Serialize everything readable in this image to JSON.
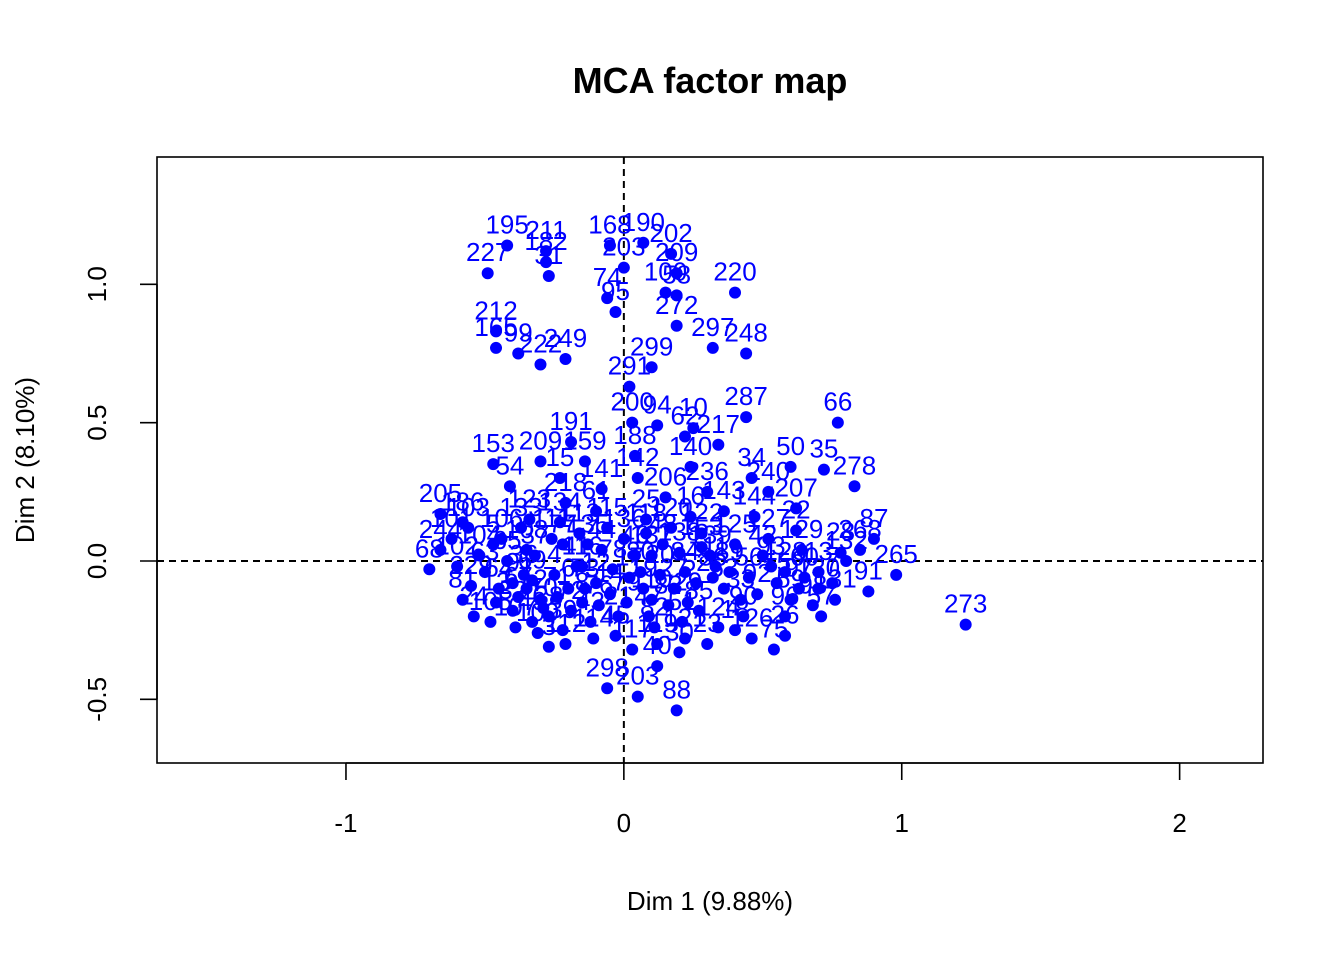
{
  "colors": {
    "points": "#0000ff",
    "axes": "#000000",
    "background": "#ffffff"
  },
  "chart_data": {
    "type": "scatter",
    "title": "MCA factor map",
    "xlabel": "Dim 1 (9.88%)",
    "ylabel": "Dim 2 (8.10%)",
    "xlim": [
      -1.68,
      2.3
    ],
    "ylim": [
      -0.73,
      1.46
    ],
    "xticks": [
      -1,
      0,
      1,
      2
    ],
    "xtick_labels": [
      "-1",
      "0",
      "1",
      "2"
    ],
    "yticks": [
      -0.5,
      0.0,
      0.5,
      1.0
    ],
    "ytick_labels": [
      "-0.5",
      "0.0",
      "0.5",
      "1.0"
    ],
    "reference_lines": {
      "x": 0,
      "y": 0,
      "style": "dashed"
    },
    "points": [
      {
        "label": "195",
        "x": -0.42,
        "y": 1.14
      },
      {
        "label": "211",
        "x": -0.28,
        "y": 1.12
      },
      {
        "label": "182",
        "x": -0.28,
        "y": 1.08
      },
      {
        "label": "31",
        "x": -0.27,
        "y": 1.03
      },
      {
        "label": "227",
        "x": -0.49,
        "y": 1.04
      },
      {
        "label": "168",
        "x": -0.05,
        "y": 1.14
      },
      {
        "label": "190",
        "x": 0.07,
        "y": 1.15
      },
      {
        "label": "202",
        "x": 0.17,
        "y": 1.11
      },
      {
        "label": "203",
        "x": 0.0,
        "y": 1.06
      },
      {
        "label": "209",
        "x": 0.19,
        "y": 1.04
      },
      {
        "label": "100",
        "x": 0.15,
        "y": 0.97
      },
      {
        "label": "220",
        "x": 0.4,
        "y": 0.97
      },
      {
        "label": "74",
        "x": -0.06,
        "y": 0.95
      },
      {
        "label": "95",
        "x": -0.03,
        "y": 0.9
      },
      {
        "label": "58",
        "x": 0.19,
        "y": 0.96
      },
      {
        "label": "212",
        "x": -0.46,
        "y": 0.83
      },
      {
        "label": "165",
        "x": -0.46,
        "y": 0.77
      },
      {
        "label": "99",
        "x": -0.38,
        "y": 0.75
      },
      {
        "label": "222",
        "x": -0.3,
        "y": 0.71
      },
      {
        "label": "249",
        "x": -0.21,
        "y": 0.73
      },
      {
        "label": "297",
        "x": 0.32,
        "y": 0.77
      },
      {
        "label": "248",
        "x": 0.44,
        "y": 0.75
      },
      {
        "label": "272",
        "x": 0.19,
        "y": 0.85
      },
      {
        "label": "299",
        "x": 0.1,
        "y": 0.7
      },
      {
        "label": "291",
        "x": 0.02,
        "y": 0.63
      },
      {
        "label": "66",
        "x": 0.77,
        "y": 0.5
      },
      {
        "label": "287",
        "x": 0.44,
        "y": 0.52
      },
      {
        "label": "191",
        "x": -0.19,
        "y": 0.43
      },
      {
        "label": "200",
        "x": 0.03,
        "y": 0.5
      },
      {
        "label": "94",
        "x": 0.12,
        "y": 0.49
      },
      {
        "label": "10",
        "x": 0.25,
        "y": 0.48
      },
      {
        "label": "62",
        "x": 0.22,
        "y": 0.45
      },
      {
        "label": "217",
        "x": 0.34,
        "y": 0.42
      },
      {
        "label": "153",
        "x": -0.47,
        "y": 0.35
      },
      {
        "label": "209",
        "x": -0.3,
        "y": 0.36
      },
      {
        "label": "159",
        "x": -0.14,
        "y": 0.36
      },
      {
        "label": "188",
        "x": 0.04,
        "y": 0.38
      },
      {
        "label": "50",
        "x": 0.6,
        "y": 0.34
      },
      {
        "label": "35",
        "x": 0.72,
        "y": 0.33
      },
      {
        "label": "278",
        "x": 0.83,
        "y": 0.27
      },
      {
        "label": "34",
        "x": 0.46,
        "y": 0.3
      },
      {
        "label": "240",
        "x": 0.52,
        "y": 0.25
      },
      {
        "label": "54",
        "x": -0.41,
        "y": 0.27
      },
      {
        "label": "15",
        "x": -0.23,
        "y": 0.3
      },
      {
        "label": "218",
        "x": -0.21,
        "y": 0.21
      },
      {
        "label": "206",
        "x": 0.15,
        "y": 0.23
      },
      {
        "label": "236",
        "x": 0.3,
        "y": 0.25
      },
      {
        "label": "207",
        "x": 0.62,
        "y": 0.19
      },
      {
        "label": "205",
        "x": -0.66,
        "y": 0.17
      },
      {
        "label": "186",
        "x": -0.58,
        "y": 0.14
      },
      {
        "label": "123",
        "x": -0.34,
        "y": 0.15
      },
      {
        "label": "25",
        "x": 0.08,
        "y": 0.15
      },
      {
        "label": "153",
        "x": 0.28,
        "y": 0.05
      },
      {
        "label": "22",
        "x": 0.62,
        "y": 0.11
      },
      {
        "label": "87",
        "x": 0.9,
        "y": 0.08
      },
      {
        "label": "268",
        "x": 0.85,
        "y": 0.04
      },
      {
        "label": "28",
        "x": 0.78,
        "y": 0.03
      },
      {
        "label": "265",
        "x": 0.98,
        "y": -0.05
      },
      {
        "label": "273",
        "x": 1.23,
        "y": -0.23
      },
      {
        "label": "91",
        "x": 0.88,
        "y": -0.11
      },
      {
        "label": "7",
        "x": 0.75,
        "y": -0.08
      },
      {
        "label": "26",
        "x": 0.58,
        "y": -0.27
      },
      {
        "label": "75",
        "x": 0.54,
        "y": -0.32
      },
      {
        "label": "30",
        "x": 0.2,
        "y": -0.33
      },
      {
        "label": "88",
        "x": 0.19,
        "y": -0.54
      },
      {
        "label": "298",
        "x": -0.06,
        "y": -0.46
      },
      {
        "label": "203",
        "x": 0.05,
        "y": -0.49
      },
      {
        "label": "18",
        "x": 0.4,
        "y": -0.25
      },
      {
        "label": "68",
        "x": -0.7,
        "y": -0.03
      },
      {
        "label": "244",
        "x": -0.66,
        "y": 0.04
      },
      {
        "label": "229",
        "x": -0.55,
        "y": -0.09
      },
      {
        "label": "24",
        "x": -0.54,
        "y": -0.2
      },
      {
        "label": "13",
        "x": -0.46,
        "y": -0.15
      },
      {
        "label": "49",
        "x": -0.33,
        "y": -0.22
      },
      {
        "label": "116",
        "x": -0.15,
        "y": -0.02
      },
      {
        "label": "11",
        "x": 0.33,
        "y": -0.02
      },
      {
        "label": "42",
        "x": 0.5,
        "y": 0.02
      },
      {
        "label": "13",
        "x": 0.7,
        "y": -0.04
      },
      {
        "label": "77",
        "x": -0.22,
        "y": 0.06
      },
      {
        "label": "55",
        "x": 0.55,
        "y": -0.08
      },
      {
        "label": "110",
        "x": 0.1,
        "y": -0.14
      },
      {
        "label": "21",
        "x": -0.02,
        "y": -0.2
      },
      {
        "label": "33",
        "x": 0.42,
        "y": -0.14
      },
      {
        "label": "5",
        "x": -0.47,
        "y": 0.06
      },
      {
        "label": "3",
        "x": -0.27,
        "y": -0.31
      },
      {
        "label": "40",
        "x": 0.12,
        "y": -0.38
      },
      {
        "label": "57",
        "x": 0.71,
        "y": -0.2
      },
      {
        "label": "23",
        "x": 0.3,
        "y": -0.3
      },
      {
        "label": "81",
        "x": -0.58,
        "y": -0.14
      },
      {
        "label": "9",
        "x": -0.4,
        "y": -0.08
      },
      {
        "label": "16",
        "x": 0.24,
        "y": 0.16
      },
      {
        "label": "61",
        "x": -0.1,
        "y": 0.18
      },
      {
        "label": "1",
        "x": -0.35,
        "y": -0.1
      },
      {
        "label": "2",
        "x": -0.3,
        "y": -0.14
      },
      {
        "label": "4",
        "x": -0.25,
        "y": -0.05
      },
      {
        "label": "6",
        "x": -0.2,
        "y": -0.1
      },
      {
        "label": "8",
        "x": -0.15,
        "y": -0.15
      },
      {
        "label": "12",
        "x": -0.1,
        "y": -0.08
      },
      {
        "label": "14",
        "x": -0.05,
        "y": -0.12
      },
      {
        "label": "17",
        "x": 0.02,
        "y": -0.06
      },
      {
        "label": "19",
        "x": 0.07,
        "y": -0.1
      },
      {
        "label": "20",
        "x": 0.13,
        "y": -0.05
      },
      {
        "label": "27",
        "x": 0.18,
        "y": -0.1
      },
      {
        "label": "29",
        "x": 0.23,
        "y": -0.15
      },
      {
        "label": "32",
        "x": -0.4,
        "y": -0.18
      },
      {
        "label": "36",
        "x": -0.36,
        "y": -0.05
      },
      {
        "label": "37",
        "x": -0.32,
        "y": 0.02
      },
      {
        "label": "38",
        "x": -0.27,
        "y": -0.2
      },
      {
        "label": "39",
        "x": -0.22,
        "y": -0.25
      },
      {
        "label": "41",
        "x": -0.17,
        "y": -0.02
      },
      {
        "label": "43",
        "x": -0.12,
        "y": -0.22
      },
      {
        "label": "44",
        "x": -0.08,
        "y": 0.04
      },
      {
        "label": "45",
        "x": -0.03,
        "y": -0.27
      },
      {
        "label": "46",
        "x": 0.04,
        "y": 0.02
      },
      {
        "label": "47",
        "x": 0.09,
        "y": -0.2
      },
      {
        "label": "48",
        "x": 0.14,
        "y": 0.06
      },
      {
        "label": "51",
        "x": 0.21,
        "y": -0.22
      },
      {
        "label": "52",
        "x": 0.26,
        "y": -0.08
      },
      {
        "label": "53",
        "x": 0.36,
        "y": -0.1
      },
      {
        "label": "56",
        "x": 0.45,
        "y": -0.06
      },
      {
        "label": "59",
        "x": 0.6,
        "y": -0.14
      },
      {
        "label": "60",
        "x": 0.65,
        "y": -0.06
      },
      {
        "label": "63",
        "x": -0.5,
        "y": -0.04
      },
      {
        "label": "64",
        "x": -0.45,
        "y": -0.1
      },
      {
        "label": "65",
        "x": -0.42,
        "y": 0.0
      },
      {
        "label": "67",
        "x": -0.38,
        "y": -0.13
      },
      {
        "label": "69",
        "x": -0.33,
        "y": -0.07
      },
      {
        "label": "70",
        "x": -0.29,
        "y": -0.17
      },
      {
        "label": "71",
        "x": -0.24,
        "y": -0.13
      },
      {
        "label": "72",
        "x": -0.19,
        "y": -0.18
      },
      {
        "label": "73",
        "x": -0.14,
        "y": -0.1
      },
      {
        "label": "76",
        "x": -0.09,
        "y": -0.16
      },
      {
        "label": "78",
        "x": -0.04,
        "y": -0.03
      },
      {
        "label": "79",
        "x": 0.01,
        "y": -0.15
      },
      {
        "label": "80",
        "x": 0.06,
        "y": -0.04
      },
      {
        "label": "82",
        "x": 0.11,
        "y": -0.24
      },
      {
        "label": "83",
        "x": 0.16,
        "y": -0.16
      },
      {
        "label": "84",
        "x": 0.22,
        "y": -0.04
      },
      {
        "label": "85",
        "x": 0.27,
        "y": -0.18
      },
      {
        "label": "86",
        "x": 0.32,
        "y": -0.06
      },
      {
        "label": "89",
        "x": 0.38,
        "y": -0.04
      },
      {
        "label": "90",
        "x": 0.43,
        "y": -0.2
      },
      {
        "label": "92",
        "x": 0.48,
        "y": -0.12
      },
      {
        "label": "93",
        "x": 0.53,
        "y": -0.02
      },
      {
        "label": "96",
        "x": 0.58,
        "y": -0.2
      },
      {
        "label": "97",
        "x": 0.63,
        "y": -0.1
      },
      {
        "label": "98",
        "x": 0.68,
        "y": -0.16
      },
      {
        "label": "101",
        "x": -0.62,
        "y": 0.08
      },
      {
        "label": "102",
        "x": -0.6,
        "y": -0.02
      },
      {
        "label": "103",
        "x": -0.56,
        "y": 0.12
      },
      {
        "label": "104",
        "x": -0.52,
        "y": 0.02
      },
      {
        "label": "105",
        "x": -0.48,
        "y": -0.22
      },
      {
        "label": "106",
        "x": -0.44,
        "y": 0.08
      },
      {
        "label": "107",
        "x": -0.39,
        "y": -0.24
      },
      {
        "label": "108",
        "x": -0.35,
        "y": 0.04
      },
      {
        "label": "109",
        "x": -0.31,
        "y": -0.26
      },
      {
        "label": "111",
        "x": -0.26,
        "y": 0.08
      },
      {
        "label": "112",
        "x": -0.21,
        "y": -0.3
      },
      {
        "label": "113",
        "x": -0.16,
        "y": 0.1
      },
      {
        "label": "114",
        "x": -0.11,
        "y": -0.28
      },
      {
        "label": "115",
        "x": -0.06,
        "y": 0.12
      },
      {
        "label": "117",
        "x": 0.03,
        "y": -0.32
      },
      {
        "label": "118",
        "x": 0.08,
        "y": 0.1
      },
      {
        "label": "119",
        "x": 0.12,
        "y": -0.3
      },
      {
        "label": "120",
        "x": 0.17,
        "y": 0.12
      },
      {
        "label": "121",
        "x": 0.22,
        "y": -0.28
      },
      {
        "label": "122",
        "x": 0.28,
        "y": 0.1
      },
      {
        "label": "124",
        "x": 0.34,
        "y": -0.24
      },
      {
        "label": "125",
        "x": 0.4,
        "y": 0.06
      },
      {
        "label": "126",
        "x": 0.46,
        "y": -0.28
      },
      {
        "label": "127",
        "x": 0.52,
        "y": 0.08
      },
      {
        "label": "128",
        "x": 0.58,
        "y": -0.04
      },
      {
        "label": "129",
        "x": 0.64,
        "y": 0.04
      },
      {
        "label": "130",
        "x": 0.7,
        "y": -0.1
      },
      {
        "label": "131",
        "x": 0.76,
        "y": -0.14
      },
      {
        "label": "132",
        "x": 0.8,
        "y": 0.0
      },
      {
        "label": "133",
        "x": -0.37,
        "y": 0.12
      },
      {
        "label": "134",
        "x": -0.23,
        "y": 0.14
      },
      {
        "label": "135",
        "x": -0.13,
        "y": 0.06
      },
      {
        "label": "136",
        "x": 0.0,
        "y": 0.08
      },
      {
        "label": "137",
        "x": 0.1,
        "y": 0.02
      },
      {
        "label": "138",
        "x": 0.2,
        "y": 0.03
      },
      {
        "label": "139",
        "x": 0.31,
        "y": 0.02
      },
      {
        "label": "140",
        "x": 0.24,
        "y": 0.34
      },
      {
        "label": "141",
        "x": -0.08,
        "y": 0.26
      },
      {
        "label": "142",
        "x": 0.05,
        "y": 0.3
      },
      {
        "label": "143",
        "x": 0.36,
        "y": 0.18
      },
      {
        "label": "144",
        "x": 0.47,
        "y": 0.16
      }
    ]
  }
}
